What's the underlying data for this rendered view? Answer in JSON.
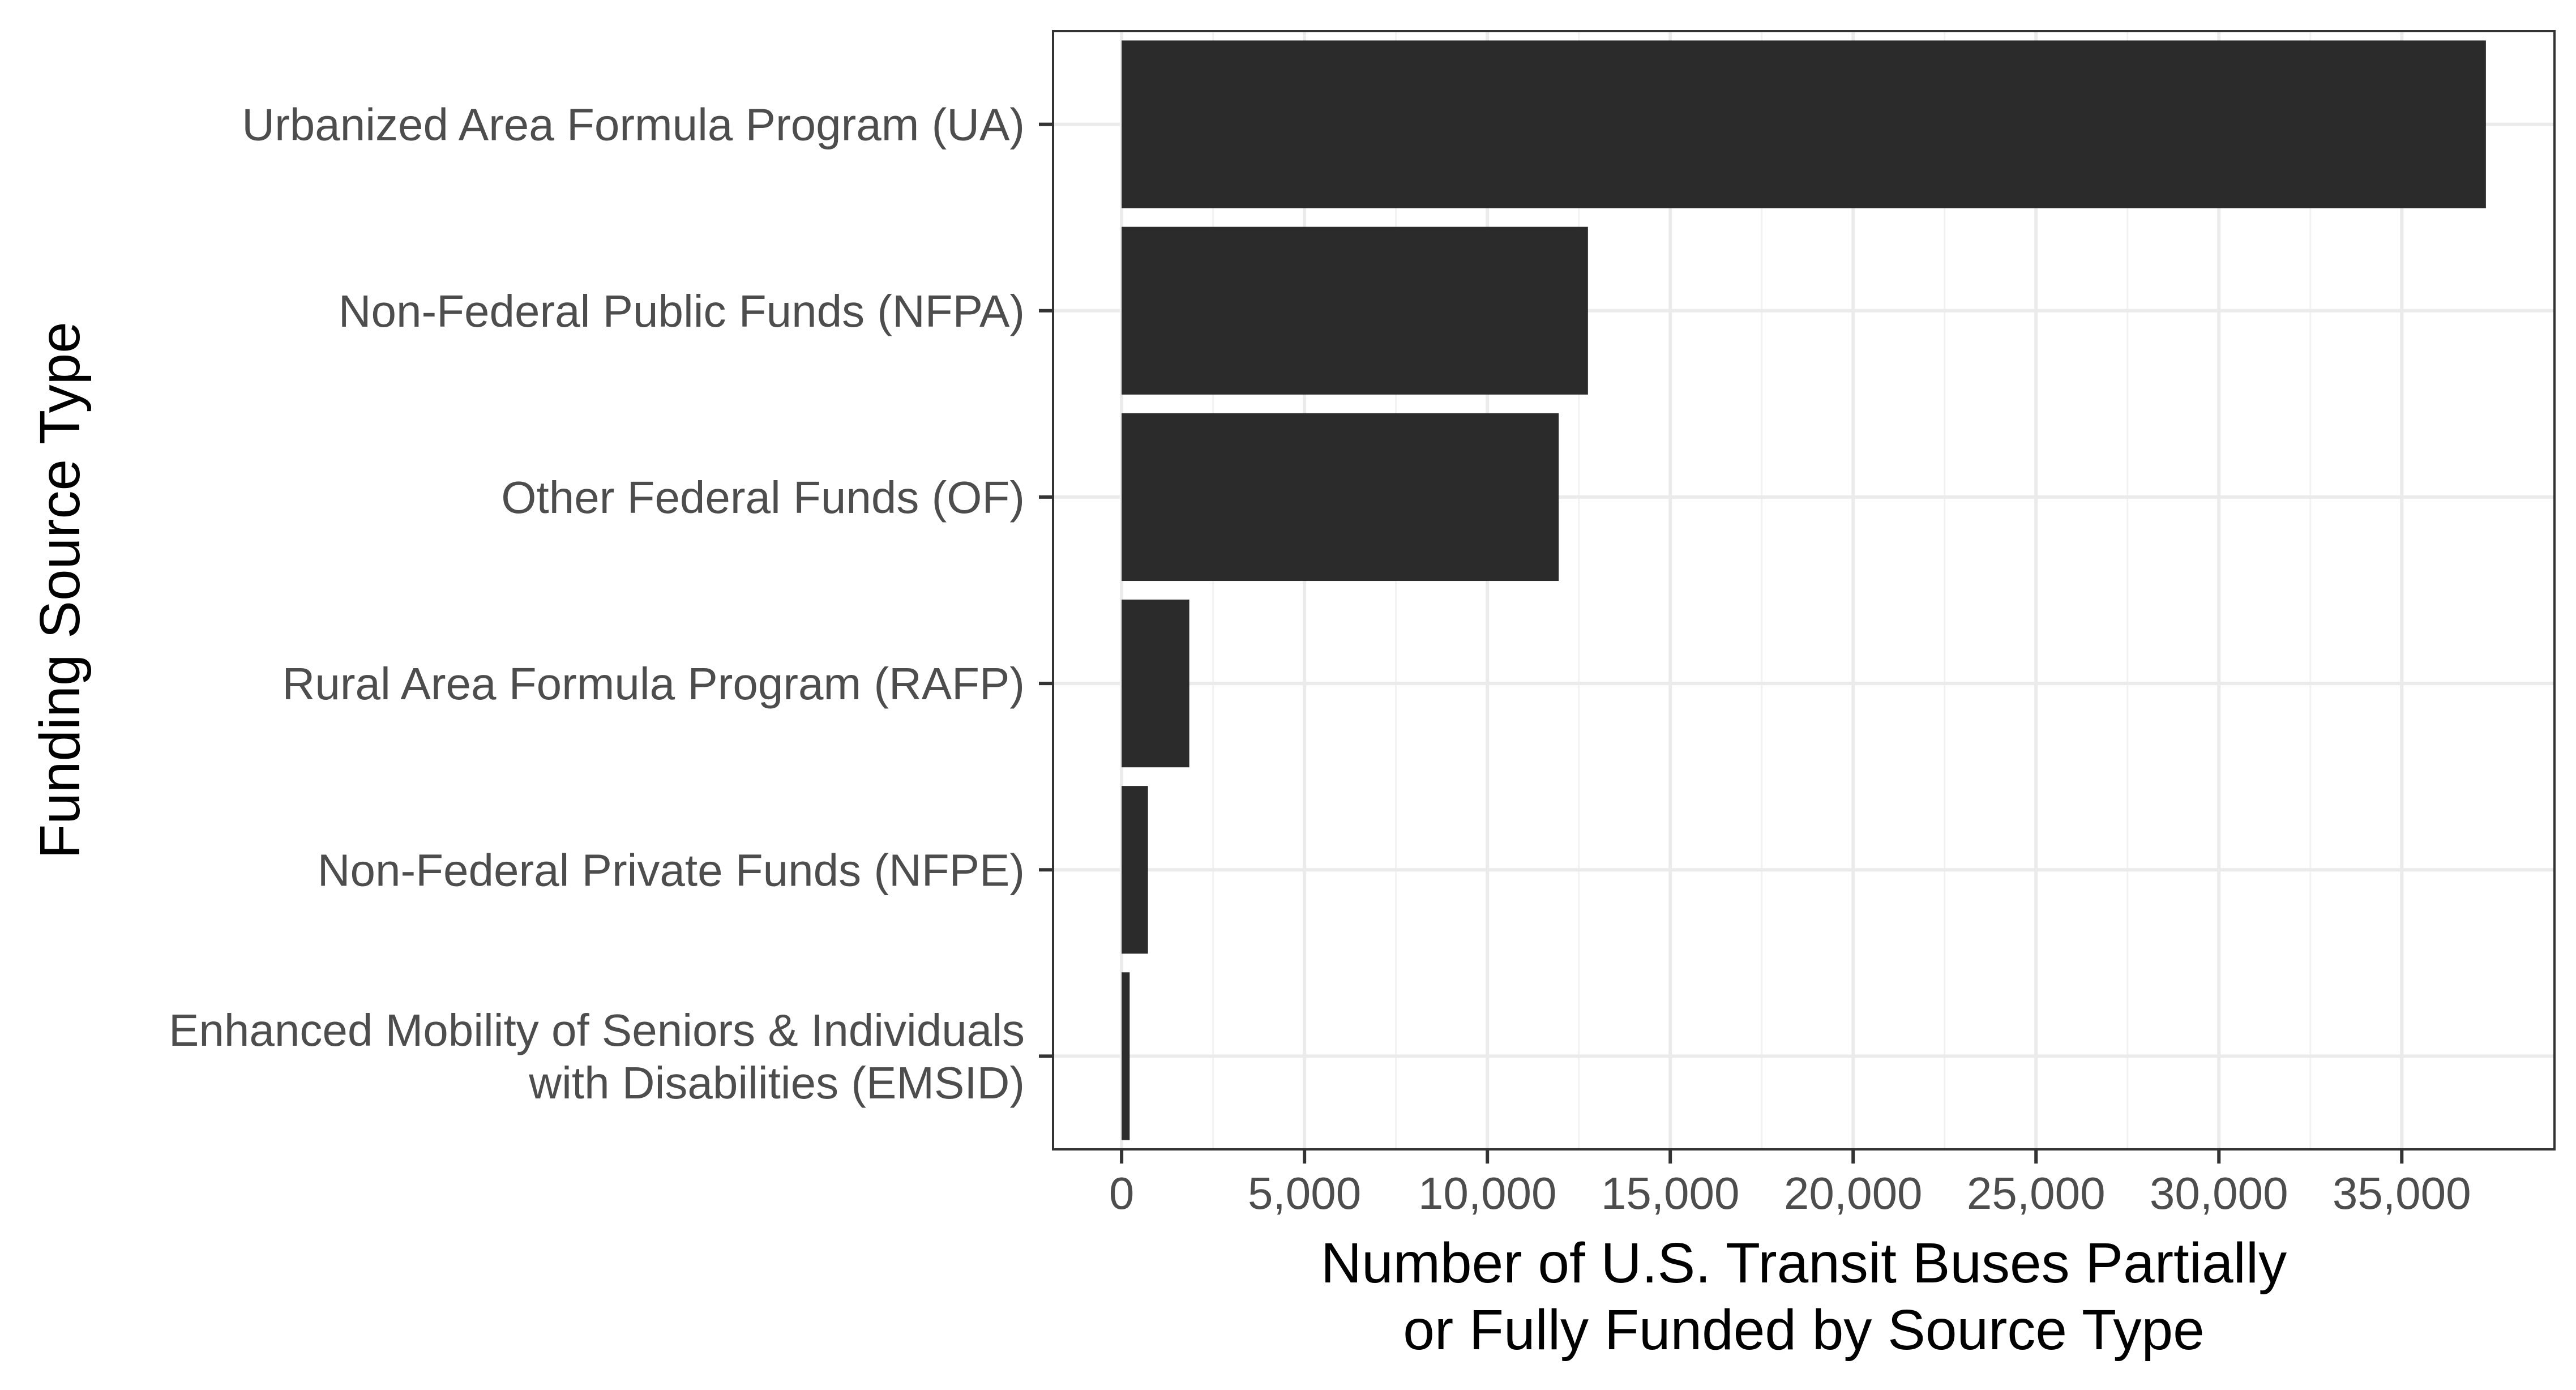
{
  "chart_data": {
    "type": "bar",
    "orientation": "horizontal",
    "categories": [
      [
        "Urbanized Area Formula Program (UA)"
      ],
      [
        "Non-Federal Public Funds (NFPA)"
      ],
      [
        "Other Federal Funds (OF)"
      ],
      [
        "Rural Area Formula Program (RAFP)"
      ],
      [
        "Non-Federal Private Funds (NFPE)"
      ],
      [
        "Enhanced Mobility of Seniors & Individuals",
        "with Disabilities (EMSID)"
      ]
    ],
    "values": [
      37300,
      12750,
      11950,
      1850,
      720,
      220
    ],
    "xlabel": [
      "Number of U.S. Transit Buses Partially",
      "or Fully Funded by Source Type"
    ],
    "ylabel": "Funding Source Type",
    "xlim": [
      -1875,
      39175
    ],
    "xticks": [
      0,
      5000,
      10000,
      15000,
      20000,
      25000,
      30000,
      35000
    ],
    "xtick_labels": [
      "0",
      "5,000",
      "10,000",
      "15,000",
      "20,000",
      "25,000",
      "30,000",
      "35,000"
    ],
    "grid": true,
    "colors": {
      "bar": "#2b2b2b",
      "grid_major": "#ebebeb",
      "grid_minor": "#f2f2f2",
      "axis_text": "#4d4d4d",
      "title_text": "#000000",
      "panel_border": "#333333"
    }
  }
}
